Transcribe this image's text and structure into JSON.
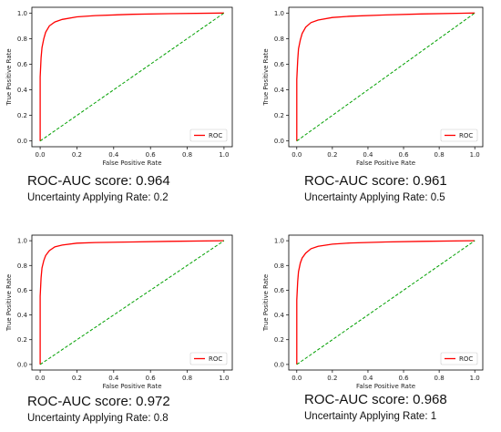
{
  "chart_data": [
    {
      "type": "line",
      "xlabel": "False Positive Rate",
      "ylabel": "True Positive Rate",
      "xlim": [
        0,
        1
      ],
      "ylim": [
        0,
        1
      ],
      "xticks": [
        "0.0",
        "0.2",
        "0.4",
        "0.6",
        "0.8",
        "1.0"
      ],
      "yticks": [
        "0.0",
        "0.2",
        "0.4",
        "0.6",
        "0.8",
        "1.0"
      ],
      "legend": "lower-right",
      "grid": false,
      "series": [
        {
          "name": "ROC",
          "color": "#ff0000",
          "x": [
            0,
            0,
            0.005,
            0.01,
            0.02,
            0.03,
            0.05,
            0.08,
            0.12,
            0.2,
            0.3,
            0.5,
            0.7,
            1.0
          ],
          "y": [
            0,
            0.5,
            0.65,
            0.73,
            0.8,
            0.85,
            0.9,
            0.93,
            0.95,
            0.97,
            0.98,
            0.99,
            0.995,
            1.0
          ]
        },
        {
          "color": "#00a000",
          "dashed": true,
          "x": [
            0,
            1
          ],
          "y": [
            0,
            1
          ]
        }
      ],
      "score": "ROC-AUC score: 0.964",
      "rate": "Uncertainty Applying Rate: 0.2"
    },
    {
      "type": "line",
      "xlabel": "False Positive Rate",
      "ylabel": "True Positive Rate",
      "xlim": [
        0,
        1
      ],
      "ylim": [
        0,
        1
      ],
      "xticks": [
        "0.0",
        "0.2",
        "0.4",
        "0.6",
        "0.8",
        "1.0"
      ],
      "yticks": [
        "0.0",
        "0.2",
        "0.4",
        "0.6",
        "0.8",
        "1.0"
      ],
      "legend": "lower-right",
      "grid": false,
      "series": [
        {
          "name": "ROC",
          "color": "#ff0000",
          "x": [
            0,
            0,
            0.005,
            0.01,
            0.02,
            0.03,
            0.05,
            0.08,
            0.12,
            0.2,
            0.3,
            0.5,
            0.7,
            1.0
          ],
          "y": [
            0,
            0.48,
            0.63,
            0.72,
            0.79,
            0.84,
            0.89,
            0.925,
            0.945,
            0.965,
            0.975,
            0.985,
            0.993,
            1.0
          ]
        },
        {
          "color": "#00a000",
          "dashed": true,
          "x": [
            0,
            1
          ],
          "y": [
            0,
            1
          ]
        }
      ],
      "score": "ROC-AUC score: 0.961",
      "rate": "Uncertainty Applying Rate: 0.5"
    },
    {
      "type": "line",
      "xlabel": "False Positive Rate",
      "ylabel": "True Positive Rate",
      "xlim": [
        0,
        1
      ],
      "ylim": [
        0,
        1
      ],
      "xticks": [
        "0.0",
        "0.2",
        "0.4",
        "0.6",
        "0.8",
        "1.0"
      ],
      "yticks": [
        "0.0",
        "0.2",
        "0.4",
        "0.6",
        "0.8",
        "1.0"
      ],
      "legend": "lower-right",
      "grid": false,
      "series": [
        {
          "name": "ROC",
          "color": "#ff0000",
          "x": [
            0,
            0,
            0.005,
            0.01,
            0.02,
            0.03,
            0.05,
            0.08,
            0.12,
            0.2,
            0.3,
            0.5,
            0.7,
            1.0
          ],
          "y": [
            0,
            0.55,
            0.7,
            0.78,
            0.84,
            0.88,
            0.92,
            0.95,
            0.965,
            0.98,
            0.985,
            0.99,
            0.995,
            1.0
          ]
        },
        {
          "color": "#00a000",
          "dashed": true,
          "x": [
            0,
            1
          ],
          "y": [
            0,
            1
          ]
        }
      ],
      "score": "ROC-AUC score: 0.972",
      "rate": "Uncertainty Applying Rate: 0.8"
    },
    {
      "type": "line",
      "xlabel": "False Positive Rate",
      "ylabel": "True Positive Rate",
      "xlim": [
        0,
        1
      ],
      "ylim": [
        0,
        1
      ],
      "xticks": [
        "0.0",
        "0.2",
        "0.4",
        "0.6",
        "0.8",
        "1.0"
      ],
      "yticks": [
        "0.0",
        "0.2",
        "0.4",
        "0.6",
        "0.8",
        "1.0"
      ],
      "legend": "lower-right",
      "grid": false,
      "series": [
        {
          "name": "ROC",
          "color": "#ff0000",
          "x": [
            0,
            0,
            0.005,
            0.01,
            0.02,
            0.03,
            0.05,
            0.08,
            0.12,
            0.2,
            0.3,
            0.5,
            0.7,
            1.0
          ],
          "y": [
            0,
            0.52,
            0.67,
            0.75,
            0.82,
            0.86,
            0.9,
            0.935,
            0.955,
            0.972,
            0.982,
            0.99,
            0.995,
            1.0
          ]
        },
        {
          "color": "#00a000",
          "dashed": true,
          "x": [
            0,
            1
          ],
          "y": [
            0,
            1
          ]
        }
      ],
      "score": "ROC-AUC score: 0.968",
      "rate": "Uncertainty Applying Rate: 1"
    }
  ]
}
